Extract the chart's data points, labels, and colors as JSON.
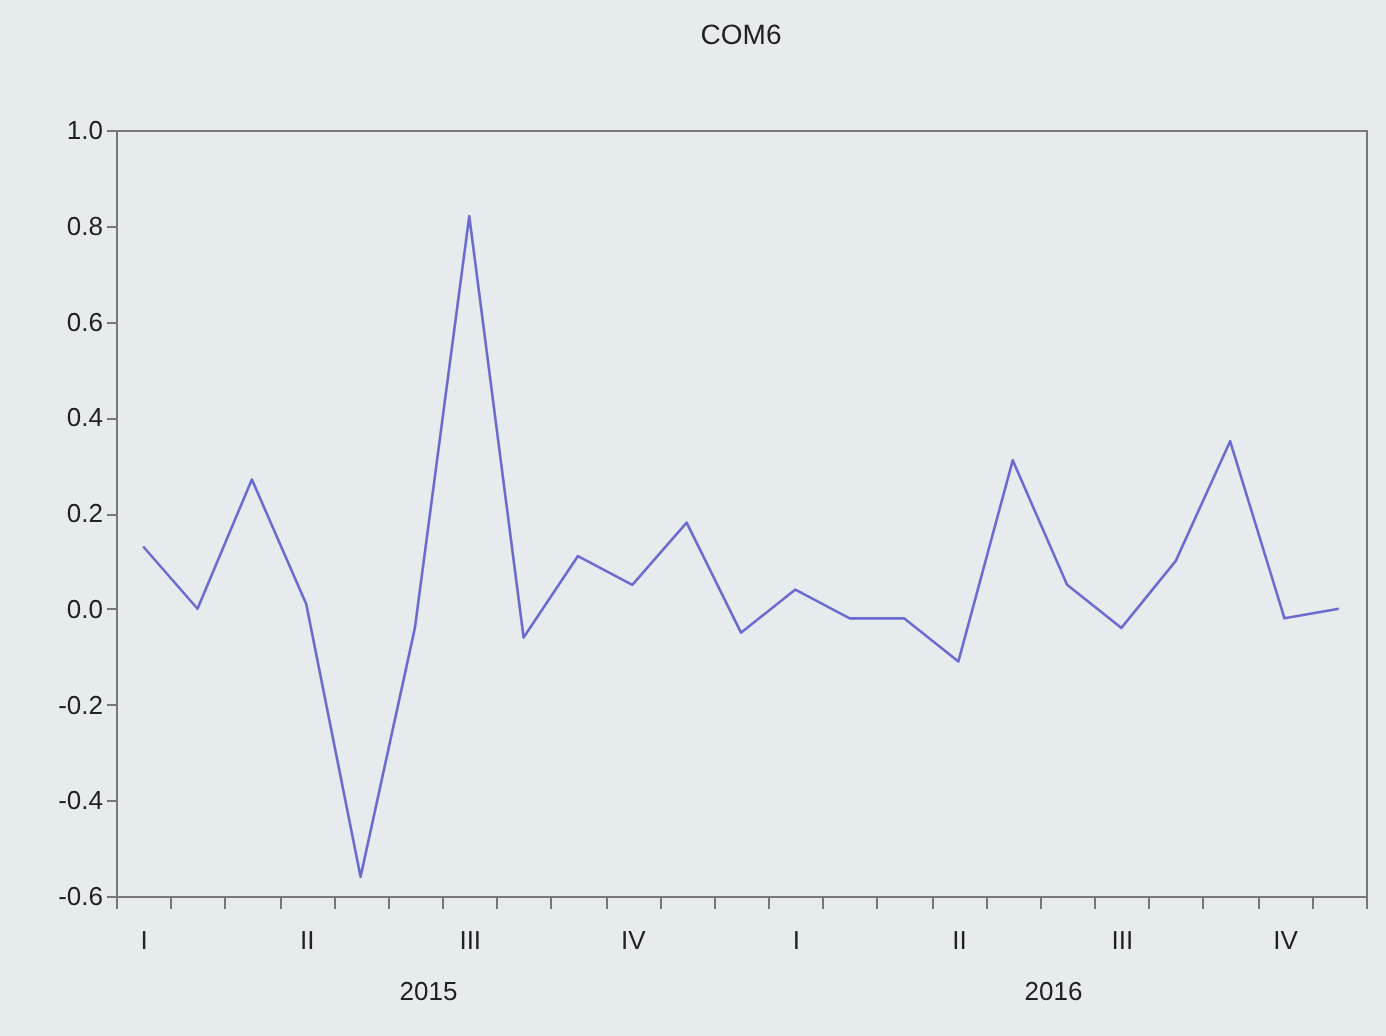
{
  "chart_data": {
    "type": "line",
    "title": "COM6",
    "categories": [
      "I",
      null,
      null,
      "II",
      null,
      null,
      "III",
      null,
      null,
      "IV",
      null,
      null,
      "I",
      null,
      null,
      "II",
      null,
      null,
      "III",
      null,
      null,
      "IV",
      null
    ],
    "series": [
      {
        "color": "#6a6acf",
        "values": [
          0.13,
          0.0,
          0.27,
          0.01,
          -0.56,
          -0.04,
          0.82,
          -0.06,
          0.11,
          0.05,
          0.18,
          -0.05,
          0.04,
          -0.02,
          -0.02,
          -0.11,
          0.31,
          0.05,
          -0.04,
          0.1,
          0.35,
          -0.02,
          0.0
        ]
      }
    ],
    "ylim": [
      -0.6,
      1.0
    ],
    "yticks": [
      {
        "value": -0.6,
        "label": "-0.6"
      },
      {
        "value": -0.4,
        "label": "-0.4"
      },
      {
        "value": -0.2,
        "label": "-0.2"
      },
      {
        "value": 0,
        "label": "0.0"
      },
      {
        "value": 0.2,
        "label": "0.2"
      },
      {
        "value": 0.4,
        "label": "0.4"
      },
      {
        "value": 0.6,
        "label": "0.6"
      },
      {
        "value": 0.8,
        "label": "0.8"
      },
      {
        "value": 1,
        "label": "1.0"
      }
    ],
    "annotations": [
      "2015",
      "2016"
    ],
    "grid": false,
    "marker": "none",
    "line_style": "solid"
  }
}
